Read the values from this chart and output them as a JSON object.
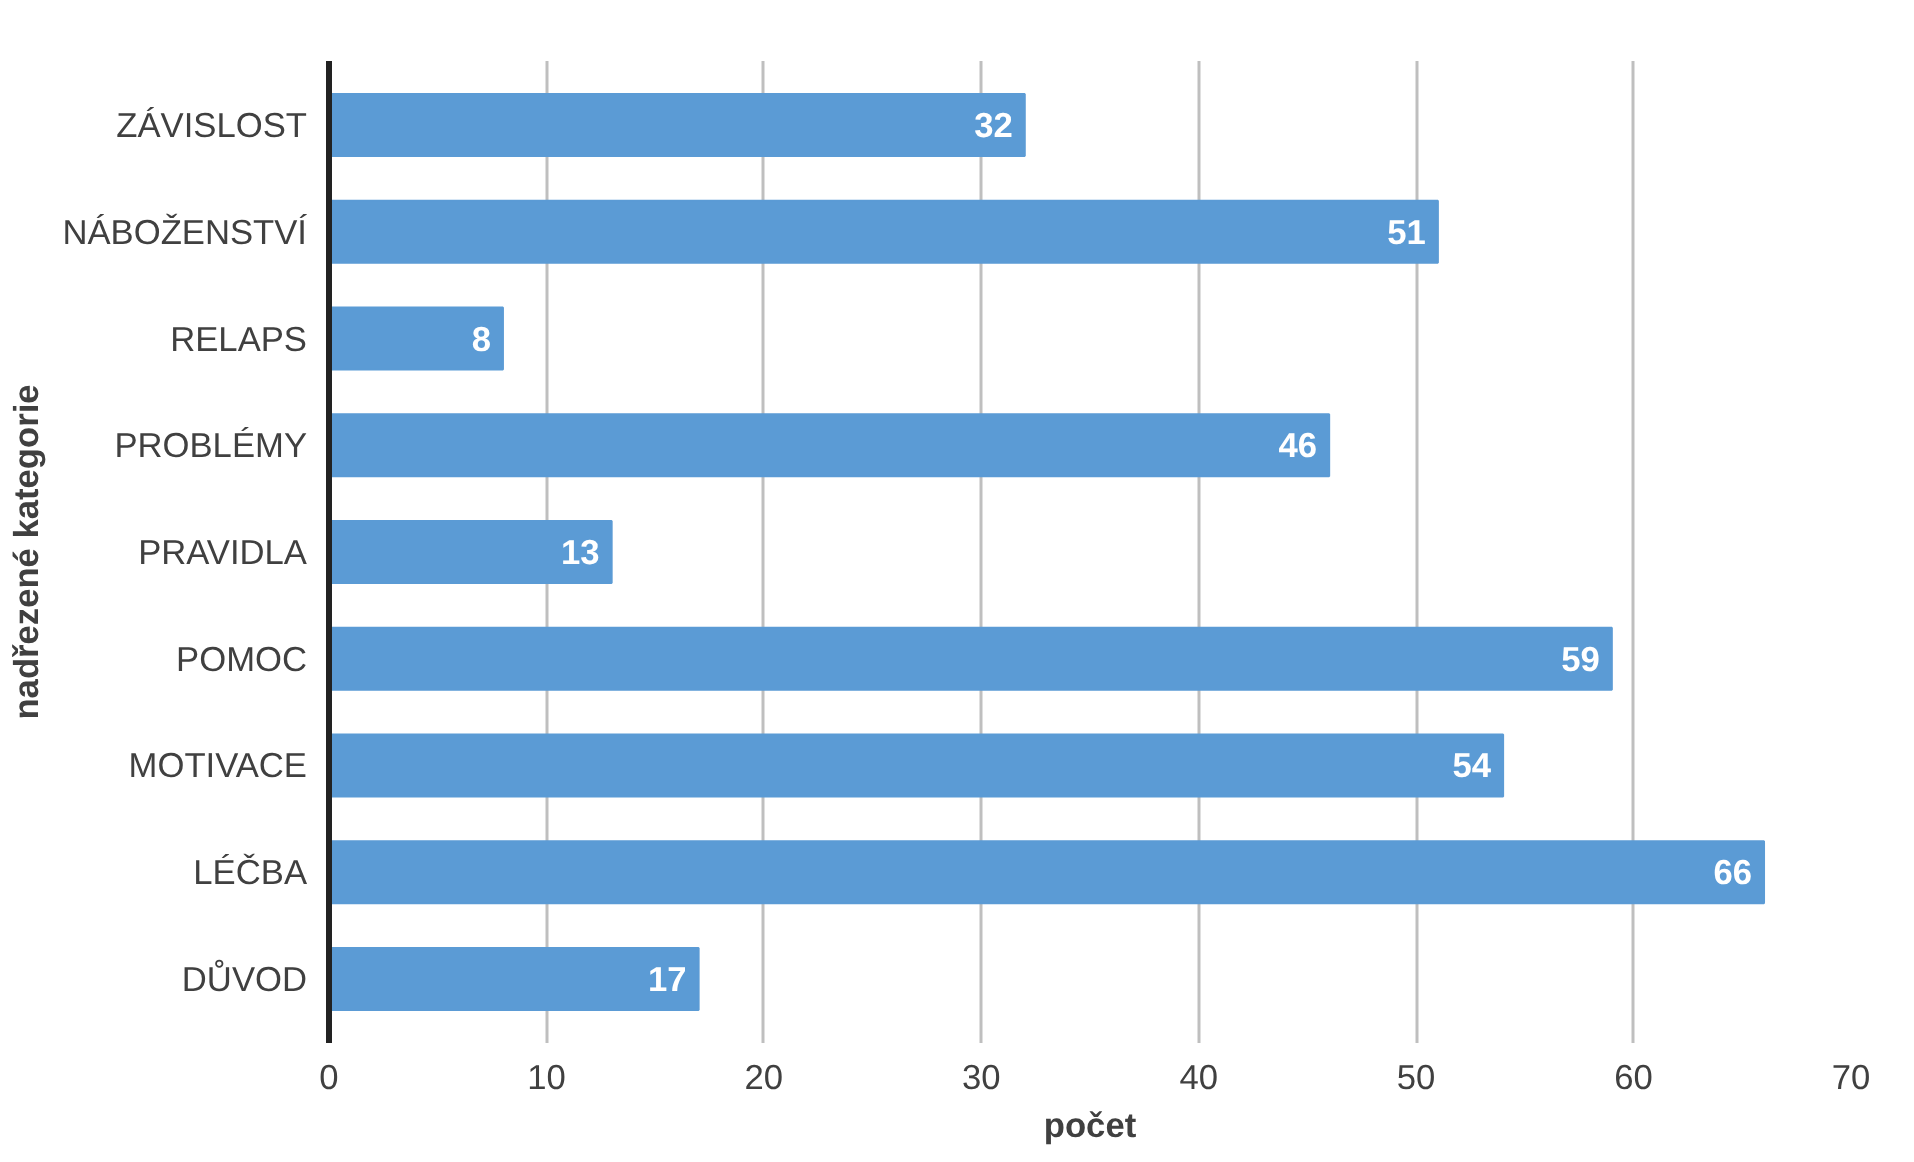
{
  "chart_data": {
    "type": "bar",
    "orientation": "horizontal",
    "xlabel": "počet",
    "ylabel": "nadřezené kategorie",
    "categories": [
      "ZÁVISLOST",
      "NÁBOŽENSTVÍ",
      "RELAPS",
      "PROBLÉMY",
      "PRAVIDLA",
      "POMOC",
      "MOTIVACE",
      "LÉČBA",
      "DŮVOD"
    ],
    "values": [
      32,
      51,
      8,
      46,
      13,
      59,
      54,
      66,
      17
    ],
    "color": "#5b9bd5",
    "xlim": [
      0,
      70
    ],
    "xticks": [
      0,
      10,
      20,
      30,
      40,
      50,
      60,
      70
    ],
    "grid": "x",
    "data_labels": true
  }
}
